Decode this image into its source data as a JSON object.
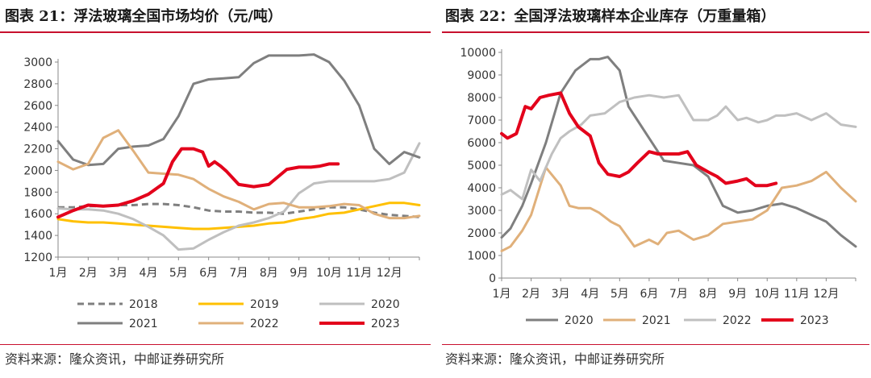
{
  "panels": [
    {
      "title": "图表 21：浮法玻璃全国市场均价（元/吨）",
      "source": "资料来源：隆众资讯，中邮证券研究所"
    },
    {
      "title": "图表 22：全国浮法玻璃样本企业库存（万重量箱）",
      "source": "资料来源：隆众资讯，中邮证券研究所"
    }
  ],
  "chart_data": [
    {
      "type": "line",
      "title": "图表 21：浮法玻璃全国市场均价（元/吨）",
      "xlabel": "",
      "ylabel": "",
      "categories": [
        "1月",
        "2月",
        "3月",
        "4月",
        "5月",
        "6月",
        "7月",
        "8月",
        "9月",
        "10月",
        "11月",
        "12月"
      ],
      "ylim": [
        1200,
        3000
      ],
      "yticks": [
        1200,
        1400,
        1600,
        1800,
        2000,
        2200,
        2400,
        2600,
        2800,
        3000
      ],
      "legend_position": "bottom",
      "grid": false,
      "series": [
        {
          "name": "2018",
          "color": "#7f7f7f",
          "dash": "dashed",
          "width": 3,
          "x": [
            0,
            0.5,
            1,
            1.5,
            2,
            2.5,
            3,
            3.5,
            4,
            4.5,
            5,
            5.5,
            6,
            6.5,
            7,
            7.5,
            8,
            8.5,
            9,
            9.5,
            10,
            10.5,
            11,
            11.5,
            12
          ],
          "y": [
            1660,
            1660,
            1670,
            1670,
            1680,
            1680,
            1690,
            1690,
            1680,
            1660,
            1630,
            1620,
            1620,
            1610,
            1610,
            1600,
            1620,
            1640,
            1660,
            1660,
            1640,
            1610,
            1590,
            1580,
            1570
          ]
        },
        {
          "name": "2019",
          "color": "#ffc000",
          "dash": "solid",
          "width": 3,
          "x": [
            0,
            0.5,
            1,
            1.5,
            2,
            2.5,
            3,
            3.5,
            4,
            4.5,
            5,
            5.5,
            6,
            6.5,
            7,
            7.5,
            8,
            8.5,
            9,
            9.5,
            10,
            10.5,
            11,
            11.5,
            12
          ],
          "y": [
            1550,
            1530,
            1520,
            1520,
            1510,
            1500,
            1490,
            1480,
            1470,
            1460,
            1460,
            1470,
            1480,
            1490,
            1510,
            1520,
            1550,
            1570,
            1600,
            1610,
            1640,
            1670,
            1700,
            1700,
            1680
          ]
        },
        {
          "name": "2020",
          "color": "#bfbfbf",
          "dash": "solid",
          "width": 3,
          "x": [
            0,
            0.5,
            1,
            1.5,
            2,
            2.5,
            3,
            3.5,
            4,
            4.5,
            5,
            5.5,
            6,
            6.5,
            7,
            7.5,
            8,
            8.5,
            9,
            9.5,
            10,
            10.5,
            11,
            11.5,
            12
          ],
          "y": [
            1650,
            1640,
            1640,
            1630,
            1600,
            1550,
            1480,
            1400,
            1270,
            1280,
            1360,
            1430,
            1490,
            1520,
            1560,
            1620,
            1790,
            1880,
            1900,
            1900,
            1900,
            1900,
            1920,
            1980,
            2250
          ]
        },
        {
          "name": "2021",
          "color": "#7f7f7f",
          "dash": "solid",
          "width": 3,
          "x": [
            0,
            0.5,
            1,
            1.5,
            2,
            2.5,
            3,
            3.5,
            4,
            4.5,
            5,
            5.5,
            6,
            6.5,
            7,
            7.5,
            8,
            8.5,
            9,
            9.5,
            10,
            10.5,
            11,
            11.5,
            12
          ],
          "y": [
            2270,
            2100,
            2050,
            2060,
            2200,
            2220,
            2230,
            2290,
            2500,
            2800,
            2840,
            2850,
            2860,
            2990,
            3060,
            3060,
            3060,
            3070,
            3000,
            2830,
            2600,
            2200,
            2060,
            2170,
            2120
          ]
        },
        {
          "name": "2022",
          "color": "#e0b07a",
          "dash": "solid",
          "width": 3,
          "x": [
            0,
            0.5,
            1,
            1.5,
            2,
            2.5,
            3,
            3.5,
            4,
            4.5,
            5,
            5.5,
            6,
            6.5,
            7,
            7.5,
            8,
            8.5,
            9,
            9.5,
            10,
            10.5,
            11,
            11.5,
            12
          ],
          "y": [
            2080,
            2010,
            2060,
            2300,
            2370,
            2180,
            1980,
            1970,
            1960,
            1920,
            1830,
            1760,
            1710,
            1640,
            1690,
            1700,
            1660,
            1660,
            1670,
            1690,
            1680,
            1600,
            1560,
            1560,
            1580
          ]
        },
        {
          "name": "2023",
          "color": "#e3001b",
          "dash": "solid",
          "width": 4,
          "x": [
            0,
            0.5,
            1,
            1.5,
            2,
            2.5,
            3,
            3.5,
            3.8,
            4.1,
            4.5,
            4.8,
            5,
            5.2,
            5.4,
            5.6,
            6,
            6.5,
            7,
            7.3,
            7.6,
            8,
            8.4,
            8.7,
            9,
            9.3
          ],
          "y": [
            1570,
            1630,
            1680,
            1670,
            1680,
            1720,
            1780,
            1880,
            2080,
            2200,
            2200,
            2170,
            2040,
            2080,
            2040,
            1990,
            1870,
            1850,
            1870,
            1940,
            2010,
            2030,
            2030,
            2040,
            2060,
            2060
          ]
        }
      ]
    },
    {
      "type": "line",
      "title": "图表 22：全国浮法玻璃样本企业库存（万重量箱）",
      "xlabel": "",
      "ylabel": "",
      "categories": [
        "1月",
        "2月",
        "3月",
        "4月",
        "5月",
        "6月",
        "7月",
        "8月",
        "9月",
        "10月",
        "11月",
        "12月"
      ],
      "ylim": [
        0,
        10000
      ],
      "yticks": [
        0,
        1000,
        2000,
        3000,
        4000,
        5000,
        6000,
        7000,
        8000,
        9000,
        10000
      ],
      "legend_position": "bottom",
      "grid": false,
      "series": [
        {
          "name": "2020",
          "color": "#7f7f7f",
          "dash": "solid",
          "width": 3,
          "x": [
            0,
            0.3,
            0.7,
            1,
            1.5,
            2,
            2.5,
            3,
            3.3,
            3.6,
            4,
            4.3,
            4.6,
            5,
            5.5,
            6,
            6.5,
            7,
            7.5,
            8,
            8.5,
            9,
            9.5,
            10,
            10.5,
            11,
            11.5,
            12
          ],
          "y": [
            1800,
            2200,
            3200,
            4200,
            6000,
            8200,
            9200,
            9700,
            9700,
            9800,
            9200,
            7600,
            7000,
            6200,
            5200,
            5100,
            5000,
            4500,
            3200,
            2900,
            3000,
            3200,
            3300,
            3100,
            2800,
            2500,
            1900,
            1400
          ]
        },
        {
          "name": "2021",
          "color": "#e0b07a",
          "dash": "solid",
          "width": 3,
          "x": [
            0,
            0.3,
            0.7,
            1,
            1.5,
            2,
            2.3,
            2.6,
            3,
            3.3,
            3.7,
            4,
            4.5,
            5,
            5.3,
            5.6,
            6,
            6.5,
            7,
            7.5,
            8,
            8.5,
            9,
            9.5,
            10,
            10.5,
            11,
            11.5,
            12
          ],
          "y": [
            1200,
            1400,
            2100,
            2800,
            4900,
            4100,
            3200,
            3100,
            3100,
            2900,
            2500,
            2300,
            1400,
            1700,
            1500,
            2000,
            2100,
            1700,
            1900,
            2400,
            2500,
            2600,
            3000,
            4000,
            4100,
            4300,
            4700,
            4000,
            3400
          ]
        },
        {
          "name": "2022",
          "color": "#c0c0c0",
          "dash": "solid",
          "width": 3,
          "x": [
            0,
            0.3,
            0.7,
            1,
            1.3,
            1.7,
            2,
            2.3,
            2.7,
            3,
            3.5,
            4,
            4.5,
            5,
            5.5,
            6,
            6.5,
            7,
            7.3,
            7.6,
            8,
            8.3,
            8.7,
            9,
            9.3,
            9.6,
            10,
            10.5,
            11,
            11.5,
            12
          ],
          "y": [
            3700,
            3900,
            3500,
            4800,
            4300,
            5500,
            6200,
            6500,
            6800,
            7200,
            7300,
            7800,
            8000,
            8100,
            8000,
            8100,
            7000,
            7000,
            7200,
            7600,
            7000,
            7100,
            6900,
            7000,
            7200,
            7200,
            7300,
            7000,
            7300,
            6800,
            6700
          ]
        },
        {
          "name": "2023",
          "color": "#e3001b",
          "dash": "solid",
          "width": 4,
          "x": [
            0,
            0.2,
            0.5,
            0.8,
            1,
            1.3,
            1.6,
            2,
            2.3,
            2.6,
            3,
            3.3,
            3.6,
            4,
            4.3,
            4.6,
            5,
            5.3,
            5.6,
            6,
            6.3,
            6.6,
            7,
            7.3,
            7.6,
            8,
            8.3,
            8.6,
            9,
            9.3
          ],
          "y": [
            6400,
            6200,
            6400,
            7600,
            7500,
            8000,
            8100,
            8200,
            7300,
            6700,
            6300,
            5100,
            4600,
            4500,
            4700,
            5100,
            5600,
            5500,
            5500,
            5500,
            5600,
            5000,
            4700,
            4500,
            4200,
            4300,
            4400,
            4100,
            4100,
            4200
          ]
        }
      ]
    }
  ]
}
